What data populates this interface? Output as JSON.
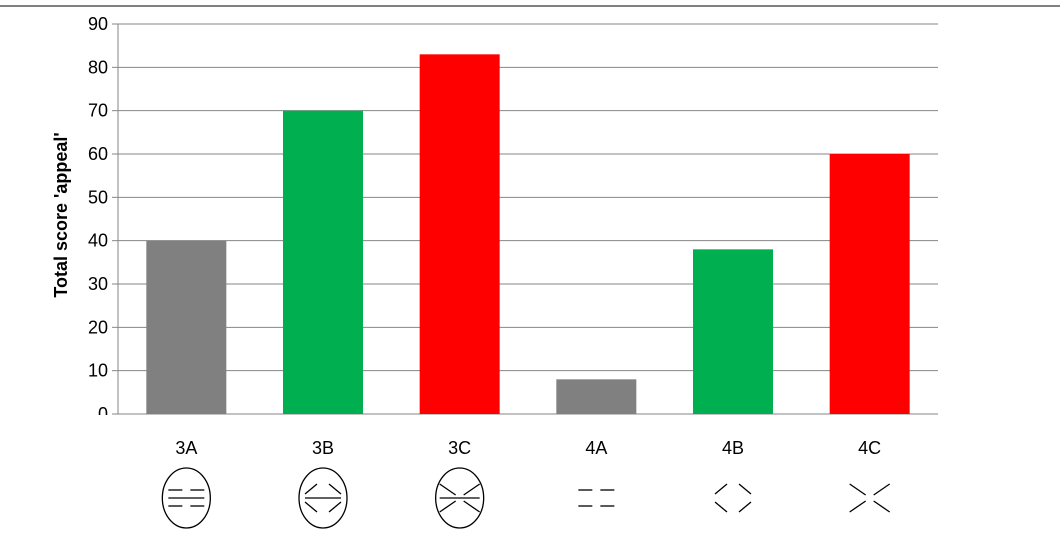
{
  "chart_data": {
    "type": "bar",
    "categories": [
      "3A",
      "3B",
      "3C",
      "4A",
      "4B",
      "4C"
    ],
    "values": [
      40,
      70,
      83,
      8,
      38,
      60
    ],
    "colors": [
      "#808080",
      "#00b050",
      "#ff0000",
      "#808080",
      "#00b050",
      "#ff0000"
    ],
    "ylabel": "Total score 'appeal'",
    "xlabel": "",
    "title": "",
    "ylim": [
      0,
      90
    ],
    "yticks": [
      0,
      10,
      20,
      30,
      40,
      50,
      60,
      70,
      80,
      90
    ],
    "grid": true,
    "legend": "none"
  },
  "figure_icons": [
    "parallel-lines-circle",
    "outward-angles-circle",
    "inward-angles-circle",
    "parallel-lines",
    "outward-angles",
    "inward-angles"
  ]
}
